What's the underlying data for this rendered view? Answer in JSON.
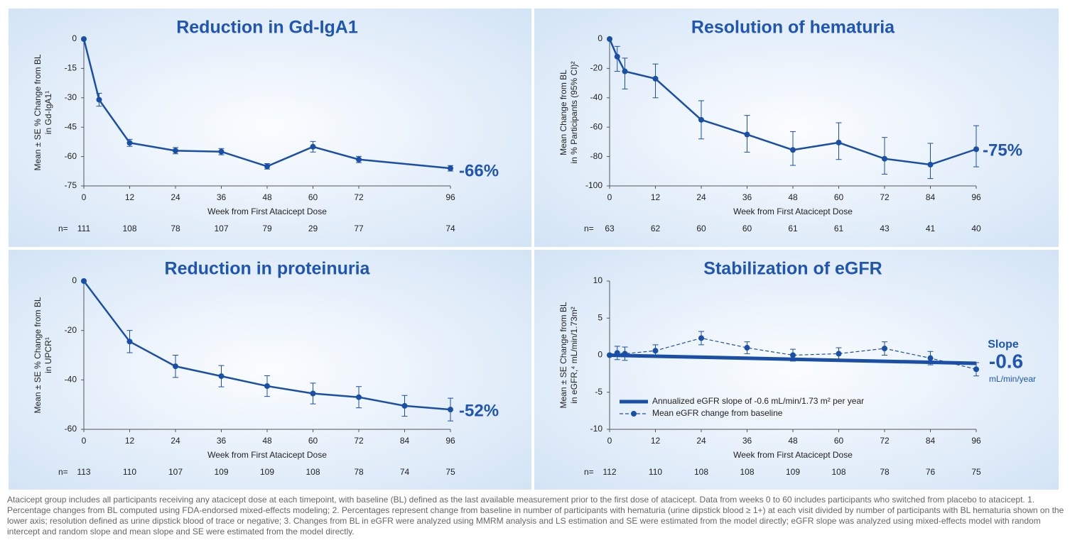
{
  "chart_data": [
    {
      "type": "line",
      "title": "Reduction in Gd-IgA1",
      "y_label": [
        "Mean ± SE % Change from BL",
        "in Gd-IgA1¹"
      ],
      "x_label": "Week from First Atacicept Dose",
      "xlim": [
        0,
        96
      ],
      "xticks": [
        0,
        12,
        24,
        36,
        48,
        60,
        72,
        96
      ],
      "ylim": [
        -75,
        0
      ],
      "yticks": [
        0,
        -15,
        -30,
        -45,
        -60,
        -75
      ],
      "series": [
        {
          "color": "#1a4fa8",
          "line_style": "solid",
          "x": [
            0,
            4,
            12,
            24,
            36,
            48,
            60,
            72,
            96
          ],
          "values": [
            0,
            -31,
            -53,
            -57,
            -57.5,
            -65,
            -55,
            -61.5,
            -66
          ],
          "errors": [
            0,
            3.3,
            1.8,
            1.6,
            1.6,
            1.4,
            2.7,
            1.6,
            1.4
          ]
        }
      ],
      "annotations": [
        "-66%"
      ],
      "n_label": "n=",
      "n": [
        111,
        108,
        78,
        107,
        79,
        29,
        77,
        74
      ]
    },
    {
      "type": "line",
      "title": "Resolution of hematuria",
      "y_label": [
        "Mean Change from BL",
        "in % Participants (95% CI)²"
      ],
      "x_label": "Week from First Atacicept Dose",
      "xlim": [
        0,
        96
      ],
      "xticks": [
        0,
        12,
        24,
        36,
        48,
        60,
        72,
        84,
        96
      ],
      "ylim": [
        -100,
        0
      ],
      "yticks": [
        0,
        -20,
        -40,
        -60,
        -80,
        -100
      ],
      "series": [
        {
          "color": "#1a4fa8",
          "line_style": "solid",
          "x": [
            0,
            2,
            4,
            12,
            24,
            36,
            48,
            60,
            72,
            84,
            96
          ],
          "values": [
            0,
            -12,
            -22,
            -27,
            -55,
            -65,
            -75.5,
            -70.5,
            -81.5,
            -85.5,
            -75
          ],
          "lower": [
            0,
            -22,
            -34,
            -40,
            -68,
            -77,
            -86,
            -82,
            -92,
            -95,
            -87
          ],
          "upper": [
            0,
            -5,
            -13,
            -17,
            -42,
            -52,
            -63,
            -57,
            -67,
            -71,
            -59
          ]
        }
      ],
      "annotations": [
        "-75%"
      ],
      "n_label": "n=",
      "n": [
        63,
        62,
        60,
        60,
        61,
        61,
        43,
        41,
        40
      ]
    },
    {
      "type": "line",
      "title": "Reduction in proteinuria",
      "y_label": [
        "Mean ± SE % Change from BL",
        "in UPCR¹"
      ],
      "x_label": "Week from First Atacicept Dose",
      "xlim": [
        0,
        96
      ],
      "xticks": [
        0,
        12,
        24,
        36,
        48,
        60,
        72,
        84,
        96
      ],
      "ylim": [
        -60,
        0
      ],
      "yticks": [
        0,
        -20,
        -40,
        -60
      ],
      "series": [
        {
          "color": "#1a4fa8",
          "line_style": "solid",
          "x": [
            0,
            12,
            24,
            36,
            48,
            60,
            72,
            84,
            96
          ],
          "values": [
            0,
            -24.5,
            -34.5,
            -38.5,
            -42.5,
            -45.5,
            -47,
            -50.5,
            -52
          ],
          "errors": [
            0,
            4.5,
            4.5,
            4.3,
            4.2,
            4.2,
            4.3,
            4.2,
            4.6
          ]
        }
      ],
      "annotations": [
        "-52%"
      ],
      "n_label": "n=",
      "n": [
        113,
        110,
        107,
        109,
        109,
        108,
        78,
        74,
        75
      ]
    },
    {
      "type": "line",
      "title": "Stabilization of eGFR",
      "y_label": [
        "Mean ± SE Change from BL",
        "in eGFR,⁴ mL/min/1.73m²"
      ],
      "x_label": "Week from First Atacicept Dose",
      "xlim": [
        0,
        96
      ],
      "xticks": [
        0,
        12,
        24,
        36,
        48,
        60,
        72,
        84,
        96
      ],
      "ylim": [
        -10,
        10
      ],
      "yticks": [
        10,
        5,
        0,
        -5,
        -10
      ],
      "legend": "lower left",
      "series": [
        {
          "name": "Annualized eGFR slope of -0.6 mL/min/1.73 m² per year",
          "color": "#1a4fa8",
          "line_style": "thick",
          "x": [
            0,
            96
          ],
          "values": [
            0,
            -1.1
          ]
        },
        {
          "name": "Mean eGFR change from baseline",
          "color": "#1a4fa8",
          "line_style": "dashed",
          "x": [
            0,
            2,
            4,
            12,
            24,
            36,
            48,
            60,
            72,
            84,
            96
          ],
          "values": [
            0,
            0.3,
            0.2,
            0.6,
            2.3,
            1.0,
            0.0,
            0.2,
            0.9,
            -0.4,
            -1.9
          ],
          "errors": [
            0,
            0.9,
            0.9,
            0.8,
            0.9,
            0.8,
            0.8,
            0.8,
            0.9,
            0.9,
            0.9
          ]
        }
      ],
      "annotations": [
        "Slope",
        "-0.6",
        "mL/min/year"
      ],
      "n_label": "n=",
      "n": [
        112,
        110,
        108,
        108,
        109,
        108,
        78,
        76,
        75
      ]
    }
  ],
  "footnote": "Atacicept group includes all participants receiving any atacicept dose at each timepoint, with baseline (BL) defined as the last available measurement prior to the first dose of atacicept. Data from weeks 0 to 60 includes participants who switched from placebo to atacicept. 1. Percentage changes from BL computed using FDA-endorsed mixed-effects modeling; 2. Percentages represent change from baseline in number of participants with hematuria (urine dipstick blood ≥ 1+) at each visit divided by number of participants with BL hematuria shown on the lower axis; resolution defined as urine dipstick blood of trace or negative; 3. Changes from BL in eGFR were analyzed using MMRM analysis and LS estimation and SE were estimated from the model directly; eGFR slope was analyzed using mixed-effects model with random intercept and random slope and mean slope and SE were estimated from the model directly."
}
